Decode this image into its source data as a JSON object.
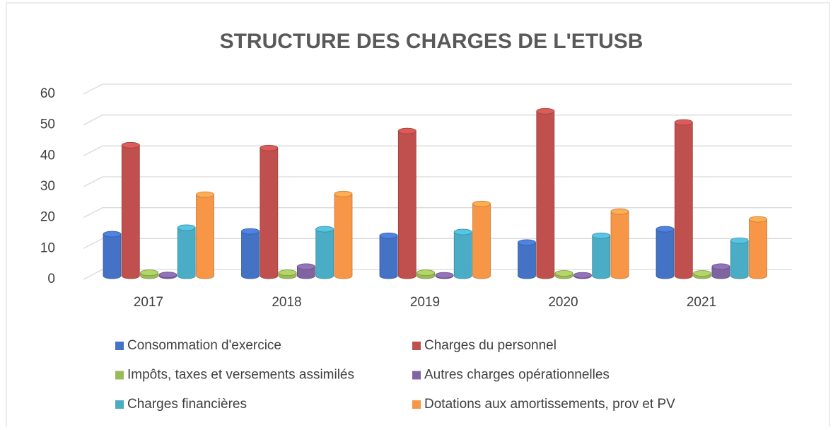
{
  "chart_data": {
    "type": "bar",
    "title": "STRUCTURE DES CHARGES DE L'ETUSB",
    "categories": [
      "2017",
      "2018",
      "2019",
      "2020",
      "2021"
    ],
    "series": [
      {
        "name": "Consommation d'exercice",
        "color": "#4472c4",
        "values": [
          13.5,
          14.4,
          13,
          10.8,
          15.1
        ]
      },
      {
        "name": "Charges du personnel",
        "color": "#c0504d",
        "values": [
          42.3,
          41.4,
          46.9,
          53.3,
          49.7
        ]
      },
      {
        "name": "Impôts, taxes et versements assimilés",
        "color": "#9bbb59",
        "values": [
          1,
          1,
          1,
          0.8,
          0.8
        ]
      },
      {
        "name": "Autres charges opérationnelles",
        "color": "#8064a2",
        "values": [
          0.3,
          3,
          0.2,
          0.2,
          3
        ]
      },
      {
        "name": "Charges financières",
        "color": "#4bacc6",
        "values": [
          15.6,
          15.1,
          14.2,
          13,
          11.4
        ]
      },
      {
        "name": "Dotations aux amortissements, prov et PV",
        "color": "#f79646",
        "values": [
          26.3,
          26.5,
          23.3,
          20.8,
          18.3
        ]
      }
    ],
    "ylim": [
      0,
      60
    ],
    "yticks": [
      0,
      10,
      20,
      30,
      40,
      50,
      60
    ],
    "grid": true,
    "legend": "bottom"
  }
}
